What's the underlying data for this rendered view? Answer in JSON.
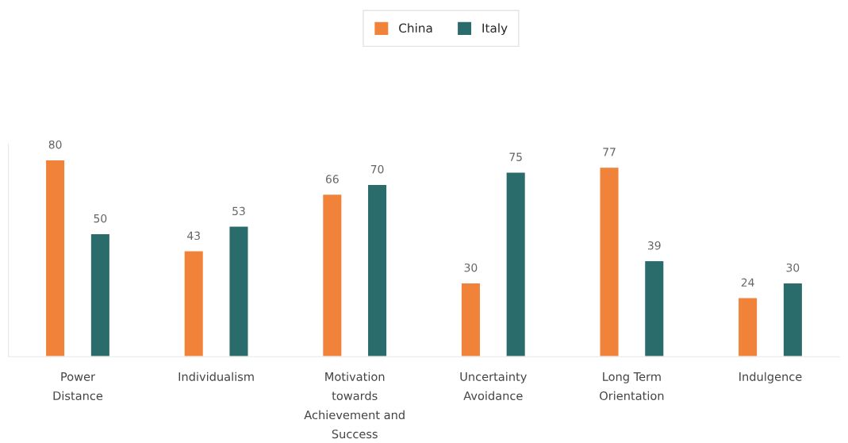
{
  "chart_data": {
    "type": "bar",
    "categories": [
      "Power\nDistance",
      "Individualism",
      "Motivation\ntowards\nAchievement and\nSuccess",
      "Uncertainty\nAvoidance",
      "Long Term\nOrientation",
      "Indulgence"
    ],
    "series": [
      {
        "name": "China",
        "color": "#f0823a",
        "values": [
          80,
          43,
          66,
          30,
          77,
          24
        ]
      },
      {
        "name": "Italy",
        "color": "#2a6b6b",
        "values": [
          50,
          53,
          70,
          75,
          39,
          30
        ]
      }
    ],
    "data_labels": true,
    "legend": "top",
    "grid": false
  }
}
